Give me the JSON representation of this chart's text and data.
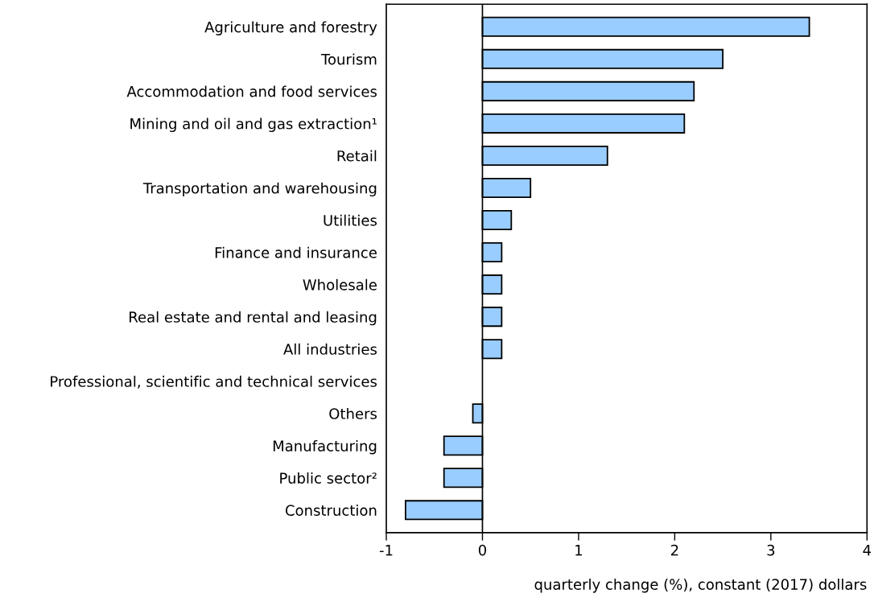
{
  "chart_data": {
    "type": "bar",
    "orientation": "horizontal",
    "categories": [
      "Agriculture and forestry",
      "Tourism",
      "Accommodation and food services",
      "Mining and oil and gas extraction¹",
      "Retail",
      "Transportation and warehousing",
      "Utilities",
      "Finance and insurance",
      "Wholesale",
      "Real estate and rental and leasing",
      "All industries",
      "Professional, scientific and technical services",
      "Others",
      "Manufacturing",
      "Public sector²",
      "Construction"
    ],
    "values": [
      3.4,
      2.5,
      2.2,
      2.1,
      1.3,
      0.5,
      0.3,
      0.2,
      0.2,
      0.2,
      0.2,
      0.0,
      -0.1,
      -0.4,
      -0.4,
      -0.8
    ],
    "color": "#99ccff",
    "xlabel": "quarterly change (%), constant (2017) dollars",
    "xlim": [
      -1,
      4
    ],
    "xticks": [
      {
        "value": -1,
        "label": "-1"
      },
      0,
      1,
      2,
      3,
      4
    ],
    "ref_lines": [
      {
        "axis": "x",
        "value": 0,
        "color": "#000000"
      }
    ],
    "grid": false,
    "legend": false
  }
}
